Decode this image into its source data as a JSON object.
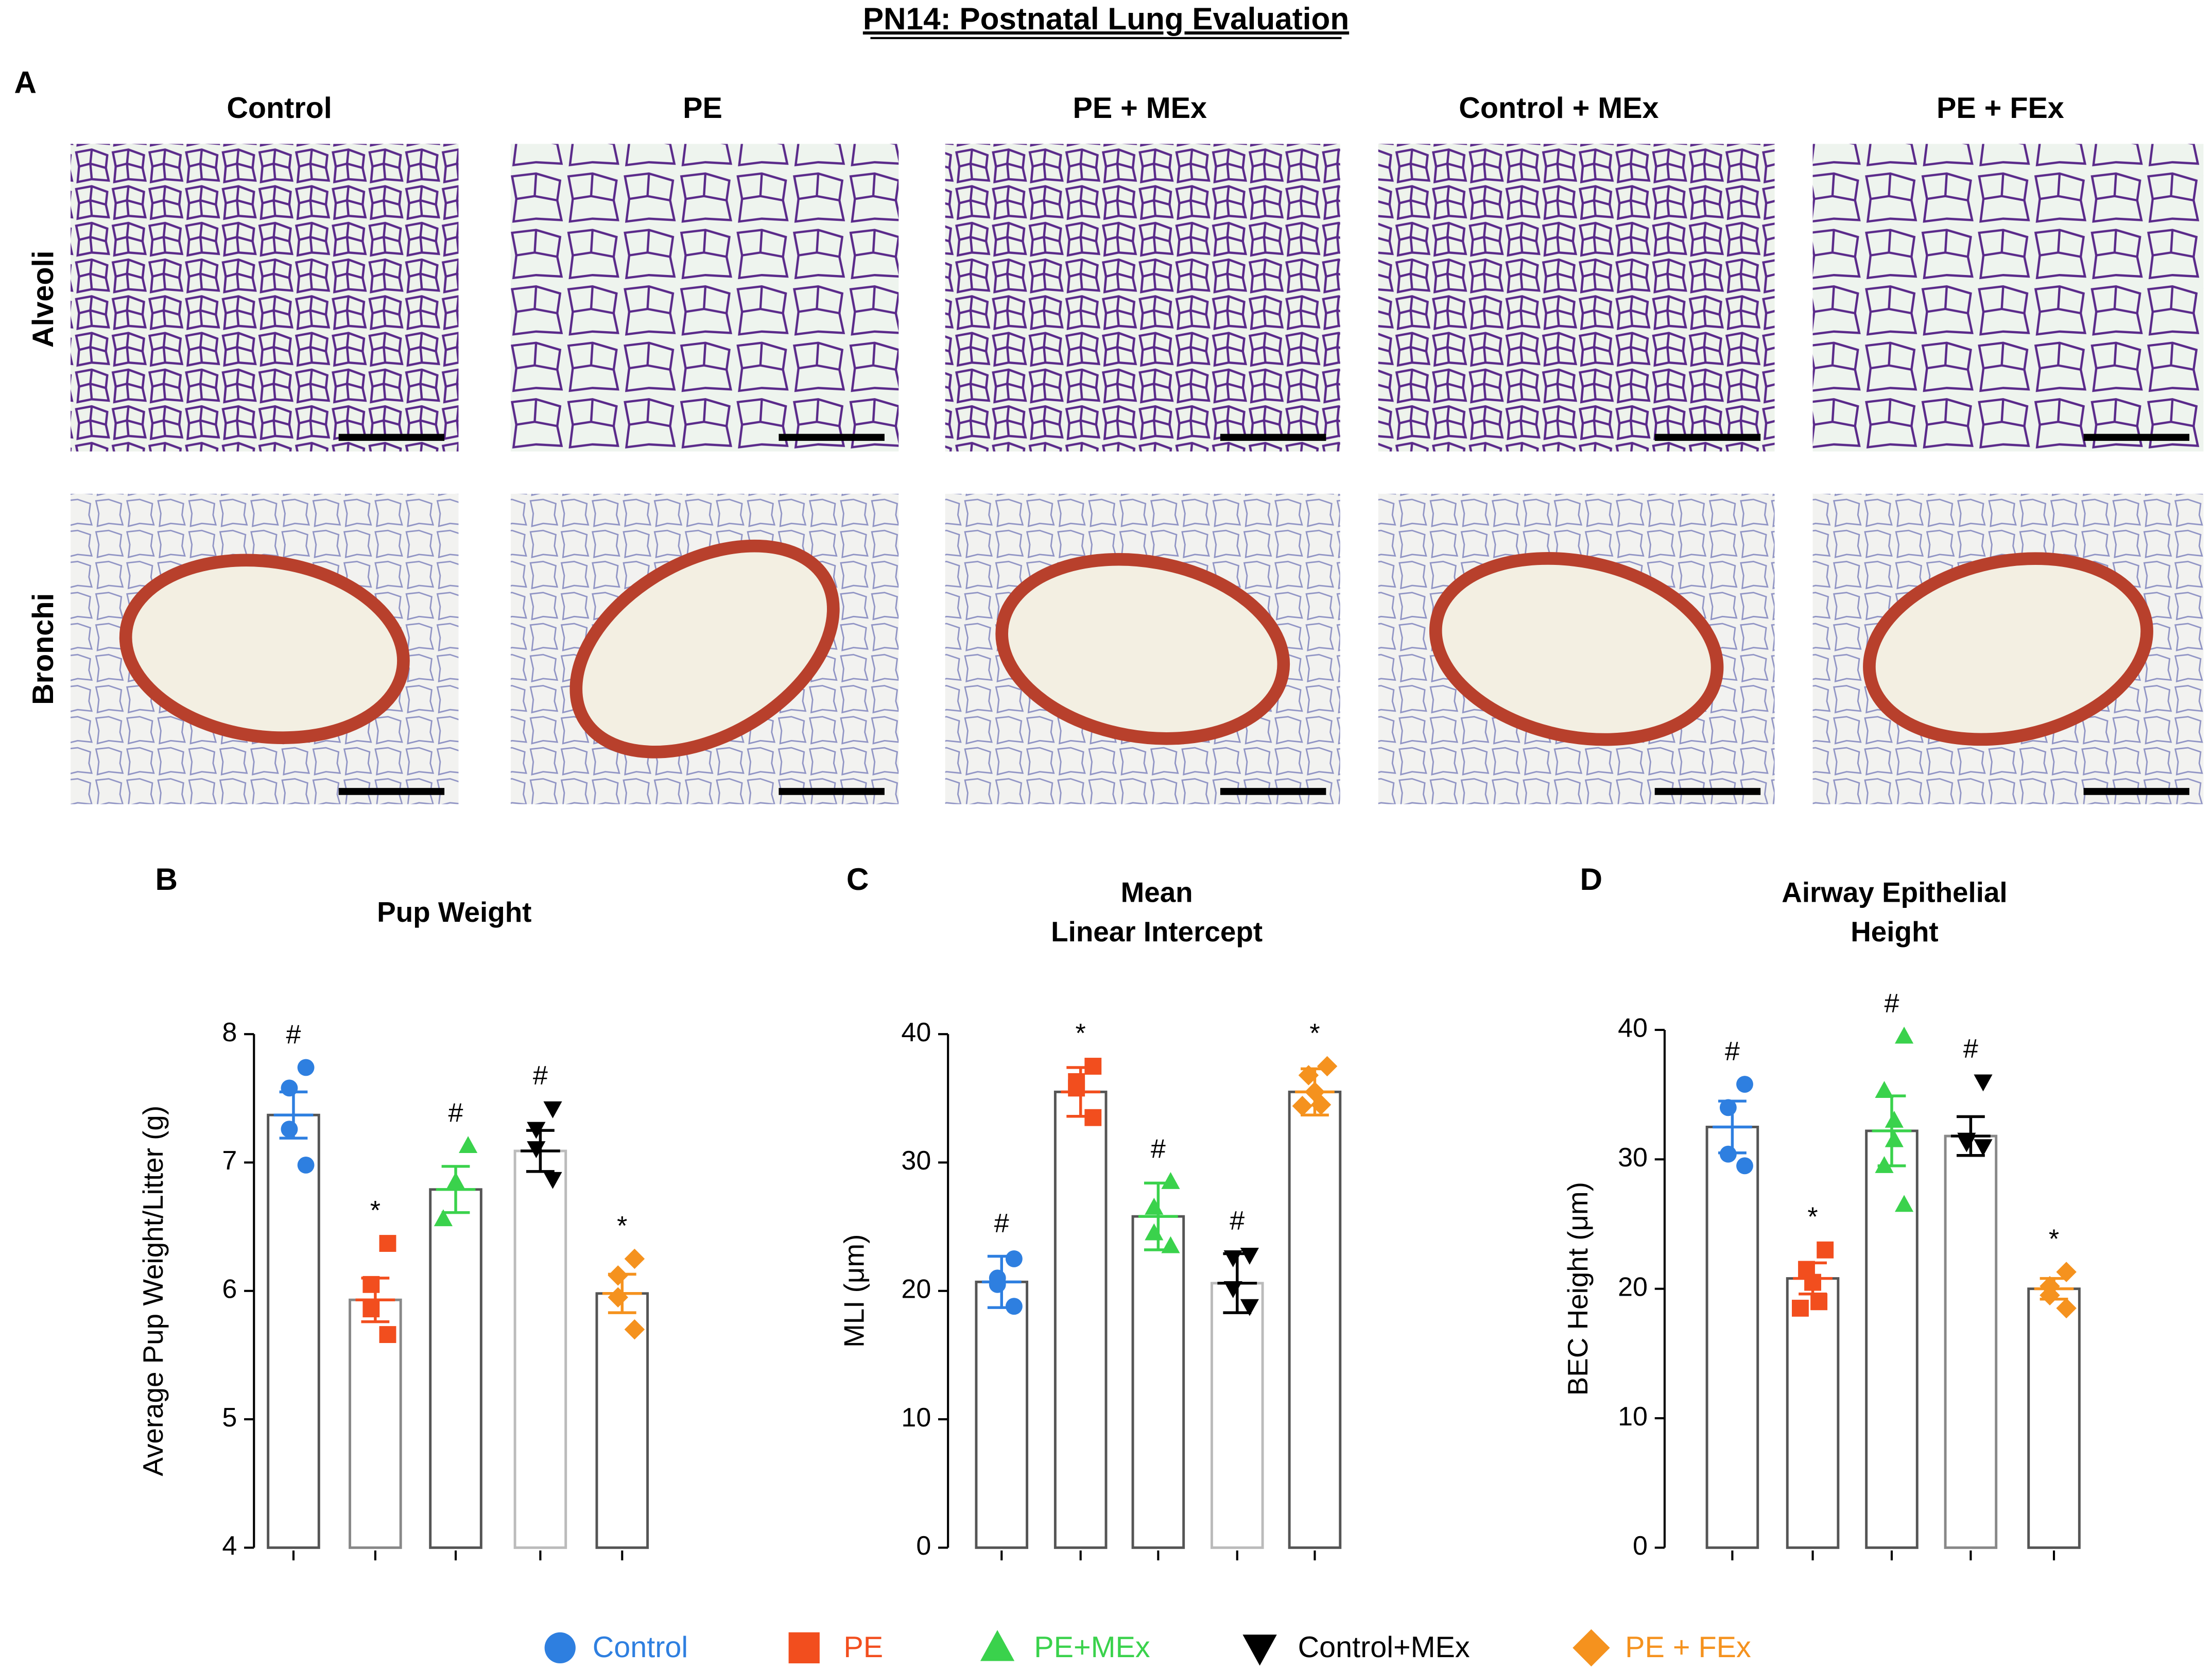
{
  "title": "PN14: Postnatal Lung Evaluation",
  "panel_a": {
    "label": "A",
    "columns": [
      "Control",
      "PE",
      "PE + MEx",
      "Control + MEx",
      "PE + FEx"
    ],
    "rows": [
      "Alveoli",
      "Bronchi"
    ]
  },
  "legend": [
    {
      "name": "Control",
      "color": "#2e7fe0",
      "marker": "circle"
    },
    {
      "name": "PE",
      "color": "#f24e1e",
      "marker": "square"
    },
    {
      "name": "PE+MEx",
      "color": "#3ad24c",
      "marker": "triangle"
    },
    {
      "name": "Control+MEx",
      "color": "#000000",
      "marker": "triangle-down"
    },
    {
      "name": "PE + FEx",
      "color": "#f5921e",
      "marker": "diamond"
    }
  ],
  "chart_data": [
    {
      "type": "bar",
      "panel": "B",
      "title": [
        "Pup Weight"
      ],
      "ylabel": "Average Pup Weight/Litter (g)",
      "ylim": [
        4,
        8
      ],
      "yticks": [
        4,
        5,
        6,
        7,
        8
      ],
      "series": [
        {
          "values": [
            7.37
          ],
          "errors": [
            0.18
          ],
          "points": [
            7.74,
            7.58,
            7.26,
            6.98
          ],
          "annotations": [
            "#"
          ],
          "edgecolor": "#555555"
        },
        {
          "values": [
            5.93
          ],
          "errors": [
            0.17
          ],
          "points": [
            6.37,
            6.05,
            5.86,
            5.66
          ],
          "annotations": [
            "*"
          ],
          "edgecolor": "#888888"
        },
        {
          "values": [
            6.79
          ],
          "errors": [
            0.18
          ],
          "points": [
            7.13,
            6.85,
            6.56
          ],
          "annotations": [
            "#"
          ],
          "edgecolor": "#555555"
        },
        {
          "values": [
            7.09
          ],
          "errors": [
            0.16
          ],
          "points": [
            7.42,
            7.26,
            7.11,
            6.87
          ],
          "annotations": [
            "#"
          ],
          "edgecolor": "#bbbbbb"
        },
        {
          "values": [
            5.98
          ],
          "errors": [
            0.15
          ],
          "points": [
            6.25,
            6.12,
            5.95,
            5.7
          ],
          "annotations": [
            "*"
          ],
          "edgecolor": "#555555"
        }
      ]
    },
    {
      "type": "bar",
      "panel": "C",
      "title": [
        "Mean",
        "Linear Intercept"
      ],
      "ylabel": "MLI (μm)",
      "ylim": [
        0,
        40
      ],
      "yticks": [
        0,
        10,
        20,
        30,
        40
      ],
      "series": [
        {
          "values": [
            20.7
          ],
          "errors": [
            2.0
          ],
          "points": [
            22.5,
            21.0,
            20.5,
            18.8
          ],
          "annotations": [
            "#"
          ],
          "edgecolor": "#555555"
        },
        {
          "values": [
            35.5
          ],
          "errors": [
            1.9
          ],
          "points": [
            37.5,
            36.3,
            35.8,
            33.5
          ],
          "annotations": [
            "*"
          ],
          "edgecolor": "#555555"
        },
        {
          "values": [
            25.8
          ],
          "errors": [
            2.6
          ],
          "points": [
            28.5,
            26.5,
            24.5,
            23.5
          ],
          "annotations": [
            "#"
          ],
          "edgecolor": "#555555"
        },
        {
          "values": [
            20.6
          ],
          "errors": [
            2.3
          ],
          "points": [
            22.8,
            22.6,
            20.2,
            18.8
          ],
          "annotations": [
            "#"
          ],
          "edgecolor": "#bbbbbb"
        },
        {
          "values": [
            35.5
          ],
          "errors": [
            1.8
          ],
          "points": [
            37.5,
            36.8,
            35.5,
            34.5,
            34.4
          ],
          "annotations": [
            "*"
          ],
          "edgecolor": "#555555"
        }
      ]
    },
    {
      "type": "bar",
      "panel": "D",
      "title": [
        "Airway Epithelial",
        "Height"
      ],
      "ylabel": "BEC Height (μm)",
      "ylim": [
        0,
        40
      ],
      "yticks": [
        0,
        10,
        20,
        30,
        40
      ],
      "series": [
        {
          "values": [
            32.5
          ],
          "errors": [
            2.0
          ],
          "points": [
            35.8,
            34.0,
            30.4,
            29.5
          ],
          "annotations": [
            "#"
          ],
          "edgecolor": "#555555"
        },
        {
          "values": [
            20.8
          ],
          "errors": [
            1.2
          ],
          "points": [
            23.0,
            21.5,
            20.5,
            19.0,
            18.5
          ],
          "annotations": [
            "*"
          ],
          "edgecolor": "#555555"
        },
        {
          "values": [
            32.2
          ],
          "errors": [
            2.7
          ],
          "points": [
            39.5,
            35.3,
            33.0,
            31.5,
            29.5,
            26.5
          ],
          "annotations": [
            "#"
          ],
          "edgecolor": "#555555"
        },
        {
          "values": [
            31.8
          ],
          "errors": [
            1.5
          ],
          "points": [
            36.0,
            31.5,
            31.3,
            31.0
          ],
          "annotations": [
            "#"
          ],
          "edgecolor": "#888888"
        },
        {
          "values": [
            20.0
          ],
          "errors": [
            0.8
          ],
          "points": [
            21.3,
            20.2,
            19.5,
            18.5
          ],
          "annotations": [
            "*"
          ],
          "edgecolor": "#555555"
        }
      ]
    }
  ]
}
